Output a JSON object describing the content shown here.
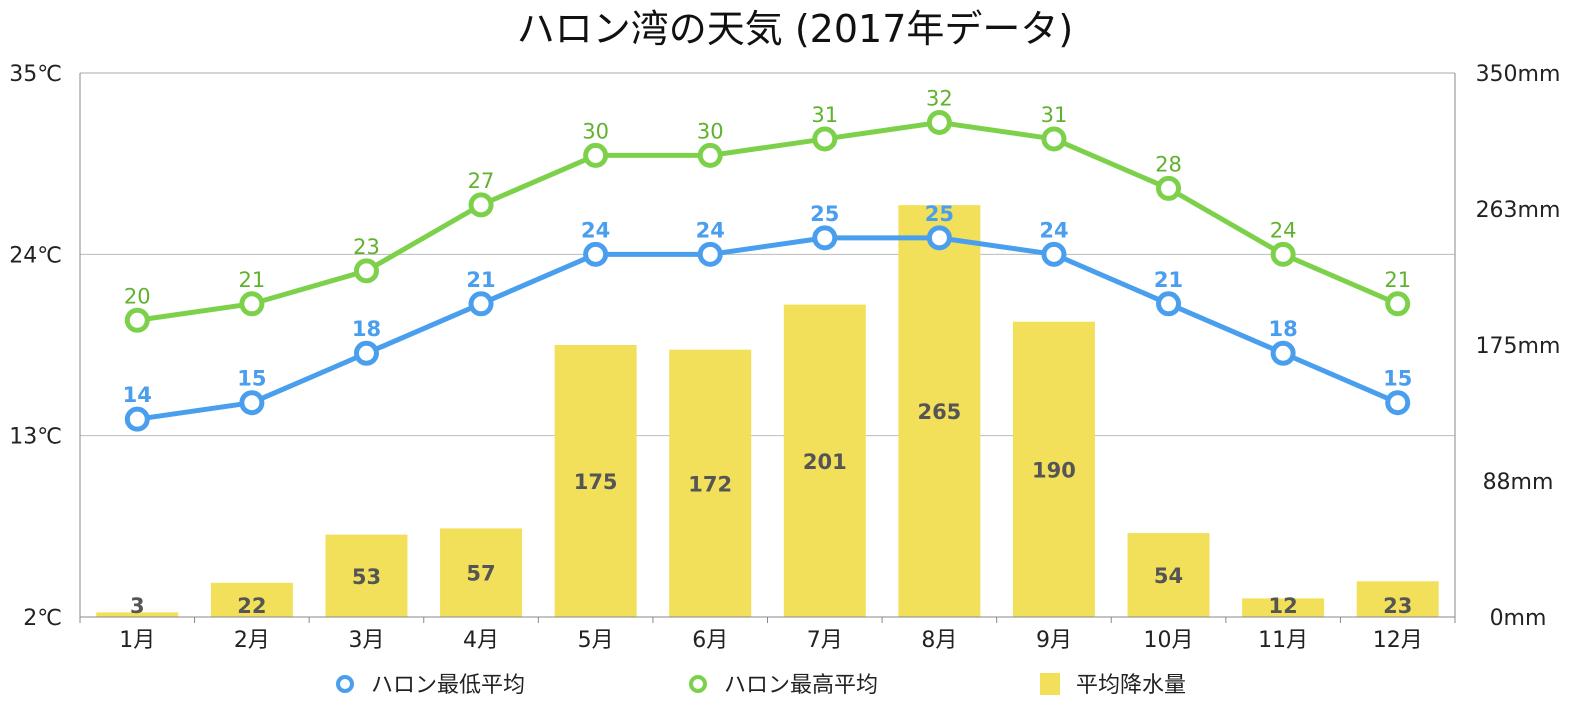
{
  "chart_data": {
    "type": "bar+line",
    "title": "ハロン湾の天気 (2017年データ)",
    "categories": [
      "1月",
      "2月",
      "3月",
      "4月",
      "5月",
      "6月",
      "7月",
      "8月",
      "9月",
      "10月",
      "11月",
      "12月"
    ],
    "y_left": {
      "ticks": [
        "35℃",
        "24℃",
        "13℃",
        "2℃"
      ],
      "tick_values": [
        35,
        24,
        13,
        2
      ],
      "ylim": [
        2,
        35
      ]
    },
    "y_right": {
      "ticks": [
        "350mm",
        "263mm",
        "175mm",
        "88mm",
        "0mm"
      ],
      "tick_values": [
        350,
        262.5,
        175,
        87.5,
        0
      ],
      "ylim": [
        0,
        350
      ]
    },
    "grid": true,
    "legend_position": "bottom",
    "series": [
      {
        "name": "ハロン最低平均",
        "type": "line",
        "axis": "left",
        "color": "#4a9eee",
        "values": [
          14,
          15,
          18,
          21,
          24,
          24,
          25,
          25,
          24,
          21,
          18,
          15
        ]
      },
      {
        "name": "ハロン最高平均",
        "type": "line",
        "axis": "left",
        "color": "#7dd14a",
        "values": [
          20,
          21,
          23,
          27,
          30,
          30,
          31,
          32,
          31,
          28,
          24,
          21
        ]
      },
      {
        "name": "平均降水量",
        "type": "bar",
        "axis": "right",
        "color": "#f3e05a",
        "values": [
          3,
          22,
          53,
          57,
          175,
          172,
          201,
          265,
          190,
          54,
          12,
          23
        ]
      }
    ]
  }
}
